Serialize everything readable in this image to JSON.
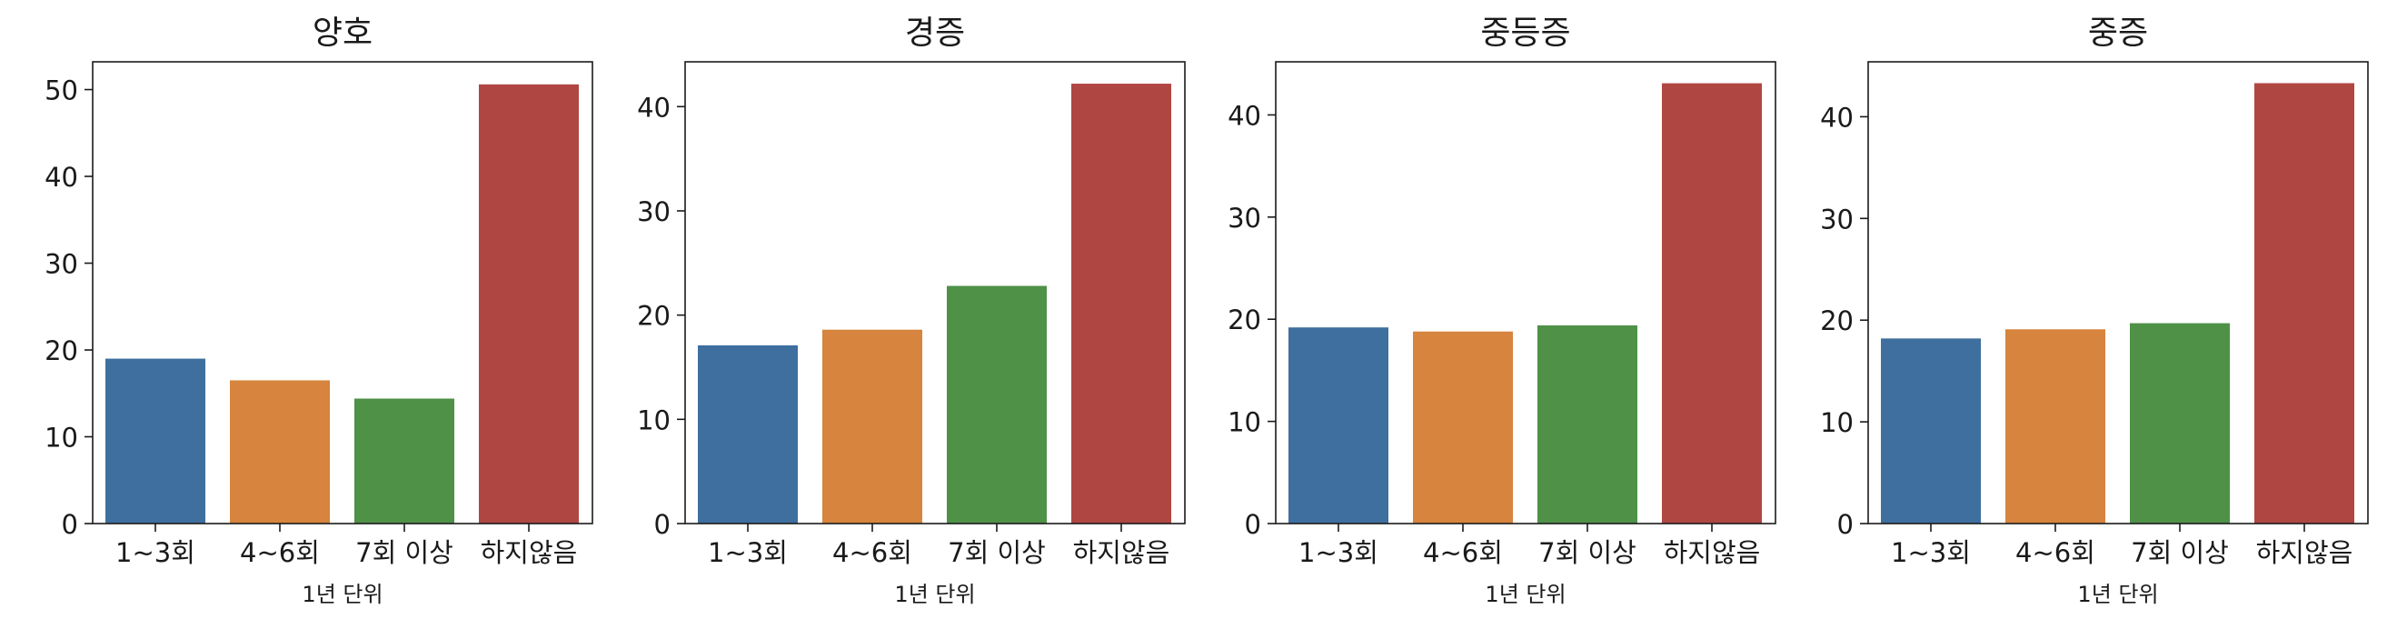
{
  "chart_data": [
    {
      "type": "bar",
      "title": "양호",
      "xlabel": "1년 단위",
      "ylabel": "",
      "categories": [
        "1~3회",
        "4~6회",
        "7회 이상",
        "하지않음"
      ],
      "values": [
        19.0,
        16.5,
        14.4,
        50.6
      ],
      "ylim": [
        0,
        53.2
      ],
      "yticks": [
        0,
        10,
        20,
        30,
        40,
        50
      ],
      "grid": false
    },
    {
      "type": "bar",
      "title": "경증",
      "xlabel": "1년 단위",
      "ylabel": "",
      "categories": [
        "1~3회",
        "4~6회",
        "7회 이상",
        "하지않음"
      ],
      "values": [
        17.1,
        18.6,
        22.8,
        42.2
      ],
      "ylim": [
        0,
        44.3
      ],
      "yticks": [
        0,
        10,
        20,
        30,
        40
      ],
      "grid": false
    },
    {
      "type": "bar",
      "title": "중등증",
      "xlabel": "1년 단위",
      "ylabel": "",
      "categories": [
        "1~3회",
        "4~6회",
        "7회 이상",
        "하지않음"
      ],
      "values": [
        19.2,
        18.8,
        19.4,
        43.1
      ],
      "ylim": [
        0,
        45.2
      ],
      "yticks": [
        0,
        10,
        20,
        30,
        40
      ],
      "grid": false
    },
    {
      "type": "bar",
      "title": "중증",
      "xlabel": "1년 단위",
      "ylabel": "",
      "categories": [
        "1~3회",
        "4~6회",
        "7회 이상",
        "하지않음"
      ],
      "values": [
        18.2,
        19.1,
        19.7,
        43.3
      ],
      "ylim": [
        0,
        45.4
      ],
      "yticks": [
        0,
        10,
        20,
        30,
        40
      ],
      "grid": false
    }
  ],
  "colors": [
    "#3e6f9e",
    "#d6843e",
    "#4e9147",
    "#b04642"
  ]
}
